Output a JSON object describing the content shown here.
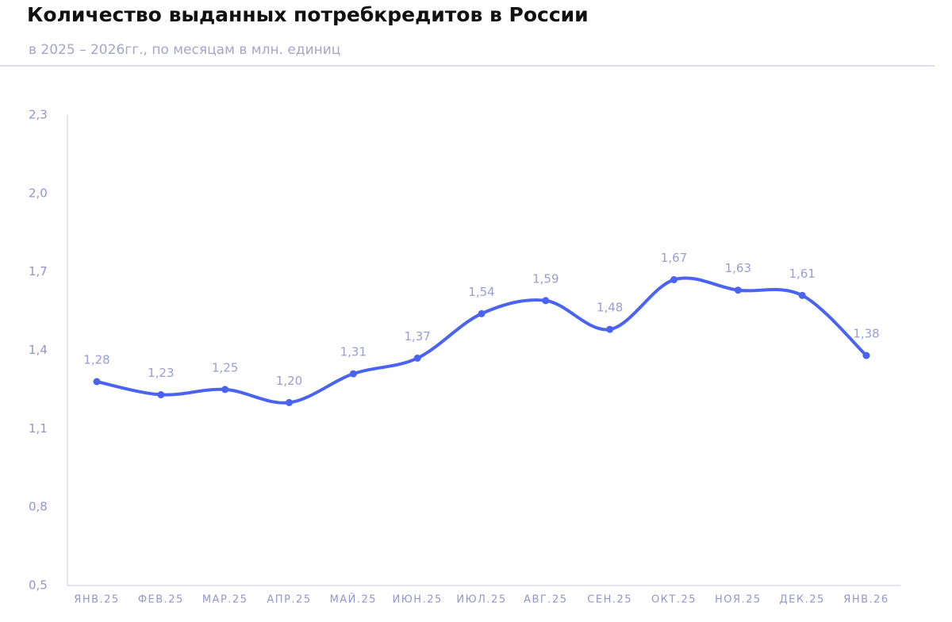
{
  "chart_data": {
    "type": "line",
    "title": "Количество выданных потребкредитов в России",
    "subtitle": "в 2025 – 2026гг., по месяцам в млн. единиц",
    "categories": [
      "ЯНВ.25",
      "ФЕВ.25",
      "МАР.25",
      "АПР.25",
      "МАЙ.25",
      "ИЮН.25",
      "ИЮЛ.25",
      "АВГ.25",
      "СЕН.25",
      "ОКТ.25",
      "НОЯ.25",
      "ДЕК.25",
      "ЯНВ.26"
    ],
    "series": [
      {
        "color": "#4a63f2",
        "values": [
          1.28,
          1.23,
          1.25,
          1.2,
          1.31,
          1.37,
          1.54,
          1.59,
          1.48,
          1.67,
          1.63,
          1.61,
          1.38
        ],
        "value_labels": [
          "1,28",
          "1,23",
          "1,25",
          "1,20",
          "1,31",
          "1,37",
          "1,54",
          "1,59",
          "1,48",
          "1,67",
          "1,63",
          "1,61",
          "1,38"
        ]
      }
    ],
    "ylim": [
      0.5,
      2.3
    ],
    "yticks": [
      {
        "value": 0.5,
        "label": "0,5"
      },
      {
        "value": 0.8,
        "label": "0,8"
      },
      {
        "value": 1.1,
        "label": "1,1"
      },
      {
        "value": 1.4,
        "label": "1,4"
      },
      {
        "value": 1.7,
        "label": "1,7"
      },
      {
        "value": 2.0,
        "label": "2,0"
      },
      {
        "value": 2.3,
        "label": "2,3"
      }
    ]
  }
}
